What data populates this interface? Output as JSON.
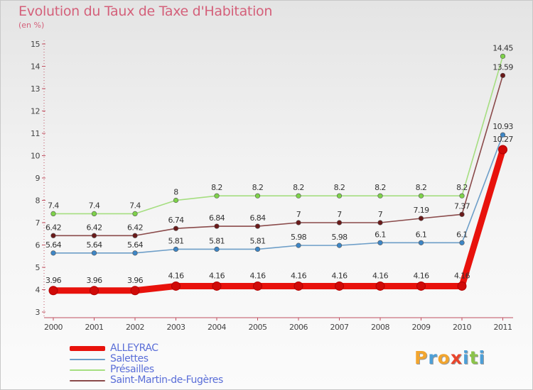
{
  "title": "Evolution du Taux de Taxe d'Habitation",
  "unit_label": "(en %)",
  "logo": {
    "text": "Proxiti",
    "colors": [
      "#f2a52e",
      "#4d9fd7",
      "#f2a52e",
      "#e8452c",
      "#4d9fd7",
      "#8bc34a",
      "#4d9fd7"
    ]
  },
  "chart_data": {
    "type": "line",
    "title": "Evolution du Taux de Taxe d'Habitation",
    "ylabel": "(en %)",
    "xlabel": "",
    "x": [
      "2000",
      "2001",
      "2002",
      "2003",
      "2004",
      "2005",
      "2006",
      "2007",
      "2008",
      "2009",
      "2010",
      "2011"
    ],
    "yticks": [
      "3",
      "4",
      "5",
      "6",
      "7",
      "8",
      "9",
      "10",
      "11",
      "12",
      "13",
      "14",
      "15"
    ],
    "ylim": [
      3,
      15
    ],
    "grid": false,
    "legend_position": "bottom-left",
    "series": [
      {
        "name": "ALLEYRAC",
        "color": "#e8120c",
        "emphasis": true,
        "values": [
          3.96,
          3.96,
          3.96,
          4.16,
          4.16,
          4.16,
          4.16,
          4.16,
          4.16,
          4.16,
          4.16,
          10.27
        ],
        "labels": [
          "3.96",
          "3.96",
          "3.96",
          "4.16",
          "4.16",
          "4.16",
          "4.16",
          "4.16",
          "4.16",
          "4.16",
          "4.16",
          "10.27"
        ]
      },
      {
        "name": "Salettes",
        "color": "#6d9ec8",
        "point_color": "#3d86c6",
        "values": [
          5.64,
          5.64,
          5.64,
          5.81,
          5.81,
          5.81,
          5.98,
          5.98,
          6.1,
          6.1,
          6.1,
          10.93
        ],
        "labels": [
          "5.64",
          "5.64",
          "5.64",
          "5.81",
          "5.81",
          "5.81",
          "5.98",
          "5.98",
          "6.1",
          "6.1",
          "6.1",
          "10.93"
        ]
      },
      {
        "name": "Présailles",
        "color": "#a5de80",
        "point_color": "#7ed24a",
        "values": [
          7.4,
          7.4,
          7.4,
          8,
          8.2,
          8.2,
          8.2,
          8.2,
          8.2,
          8.2,
          8.2,
          14.45
        ],
        "labels": [
          "7.4",
          "7.4",
          "7.4",
          "8",
          "8.2",
          "8.2",
          "8.2",
          "8.2",
          "8.2",
          "8.2",
          "8.2",
          "14.45"
        ]
      },
      {
        "name": "Saint-Martin-de-Fugères",
        "color": "#8a4a4a",
        "point_color": "#6a1a1a",
        "values": [
          6.42,
          6.42,
          6.42,
          6.74,
          6.84,
          6.84,
          7,
          7,
          7,
          7.19,
          7.37,
          13.59
        ],
        "labels": [
          "6.42",
          "6.42",
          "6.42",
          "6.74",
          "6.84",
          "6.84",
          "7",
          "7",
          "7",
          "7.19",
          "7.37",
          "13.59"
        ]
      }
    ]
  }
}
